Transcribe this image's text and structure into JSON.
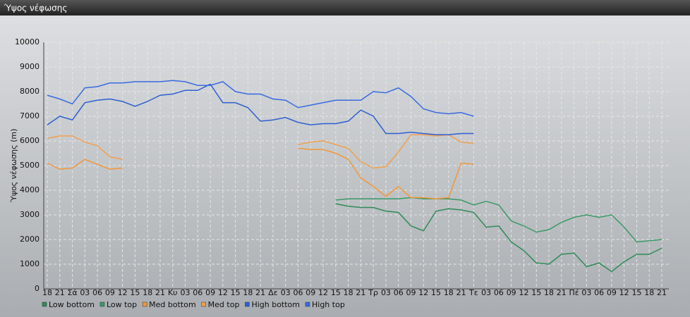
{
  "chart_data": {
    "type": "line",
    "title": "Ύψος νέφωσης",
    "y_label": "Ύψος νέφωσης (m)",
    "categories": [
      "18",
      "21",
      "Σά",
      "03",
      "06",
      "09",
      "12",
      "15",
      "18",
      "21",
      "Κυ",
      "03",
      "06",
      "09",
      "12",
      "15",
      "18",
      "21",
      "Δε",
      "03",
      "06",
      "09",
      "12",
      "15",
      "18",
      "21",
      "Τρ",
      "03",
      "06",
      "09",
      "12",
      "15",
      "18",
      "21",
      "Τε",
      "03",
      "06",
      "09",
      "12",
      "15",
      "18",
      "21",
      "Πέ",
      "03",
      "06",
      "09",
      "12",
      "15",
      "18",
      "21"
    ],
    "ylim": [
      0,
      10000
    ],
    "yticks": [
      0,
      1000,
      2000,
      3000,
      4000,
      5000,
      6000,
      7000,
      8000,
      9000,
      10000
    ],
    "grid": true,
    "series": [
      {
        "name": "Low bottom",
        "color": "#2e8b57",
        "values": [
          null,
          null,
          null,
          null,
          null,
          null,
          null,
          null,
          null,
          null,
          null,
          null,
          null,
          null,
          null,
          null,
          null,
          null,
          null,
          null,
          null,
          null,
          null,
          3450,
          3350,
          3300,
          3300,
          3150,
          3100,
          2550,
          2350,
          3150,
          3250,
          3200,
          3100,
          2500,
          2550,
          1900,
          1550,
          1050,
          1000,
          1400,
          1450,
          900,
          1050,
          700,
          1100,
          1400,
          1400,
          1650
        ]
      },
      {
        "name": "Low top",
        "color": "#3a9a66",
        "values": [
          null,
          null,
          null,
          null,
          null,
          null,
          null,
          null,
          null,
          null,
          null,
          null,
          null,
          null,
          null,
          null,
          null,
          null,
          null,
          null,
          null,
          null,
          null,
          3600,
          3650,
          3650,
          3650,
          3650,
          3650,
          3700,
          3650,
          3650,
          3650,
          3600,
          3400,
          3550,
          3400,
          2750,
          2550,
          2300,
          2400,
          2700,
          2900,
          3000,
          2900,
          3000,
          2500,
          1900,
          1950,
          2000
        ]
      },
      {
        "name": "Med bottom",
        "color": "#f0983a",
        "values": [
          5100,
          4850,
          4900,
          5250,
          5050,
          4850,
          4900,
          null,
          null,
          null,
          null,
          null,
          null,
          null,
          null,
          null,
          null,
          null,
          null,
          null,
          5700,
          5650,
          5650,
          5500,
          5250,
          4500,
          4150,
          3750,
          4150,
          3700,
          3700,
          3650,
          3700,
          5100,
          5050,
          null,
          null,
          null,
          null,
          null,
          null,
          null,
          null,
          null,
          null,
          null,
          null,
          null,
          null,
          null
        ]
      },
      {
        "name": "Med top",
        "color": "#f0a050",
        "values": [
          6100,
          6200,
          6200,
          5950,
          5800,
          5350,
          5250,
          null,
          null,
          null,
          null,
          null,
          null,
          null,
          null,
          null,
          null,
          null,
          null,
          null,
          5850,
          5950,
          6000,
          5850,
          5700,
          5150,
          4900,
          4950,
          5550,
          6250,
          6250,
          6200,
          6250,
          5950,
          5900,
          null,
          null,
          null,
          null,
          null,
          null,
          null,
          null,
          null,
          null,
          null,
          null,
          null,
          null,
          null
        ]
      },
      {
        "name": "High bottom",
        "color": "#2f5fd0",
        "values": [
          6650,
          7000,
          6850,
          7550,
          7650,
          7700,
          7600,
          7400,
          7600,
          7850,
          7900,
          8050,
          8050,
          8300,
          7550,
          7550,
          7350,
          6800,
          6850,
          6950,
          6750,
          6650,
          6700,
          6700,
          6800,
          7250,
          7000,
          6300,
          6300,
          6350,
          6300,
          6250,
          6250,
          6300,
          6300,
          null,
          null,
          null,
          null,
          null,
          null,
          null,
          null,
          null,
          null,
          null,
          null,
          null,
          null,
          null
        ]
      },
      {
        "name": "High top",
        "color": "#3a6ae0",
        "values": [
          7850,
          7700,
          7500,
          8150,
          8200,
          8350,
          8350,
          8400,
          8400,
          8400,
          8450,
          8400,
          8250,
          8250,
          8400,
          8000,
          7900,
          7900,
          7700,
          7650,
          7350,
          7450,
          7550,
          7650,
          7650,
          7650,
          8000,
          7950,
          8150,
          7800,
          7300,
          7150,
          7100,
          7150,
          7000,
          null,
          null,
          null,
          null,
          null,
          null,
          null,
          null,
          null,
          null,
          null,
          null,
          null,
          null,
          null
        ]
      }
    ]
  }
}
